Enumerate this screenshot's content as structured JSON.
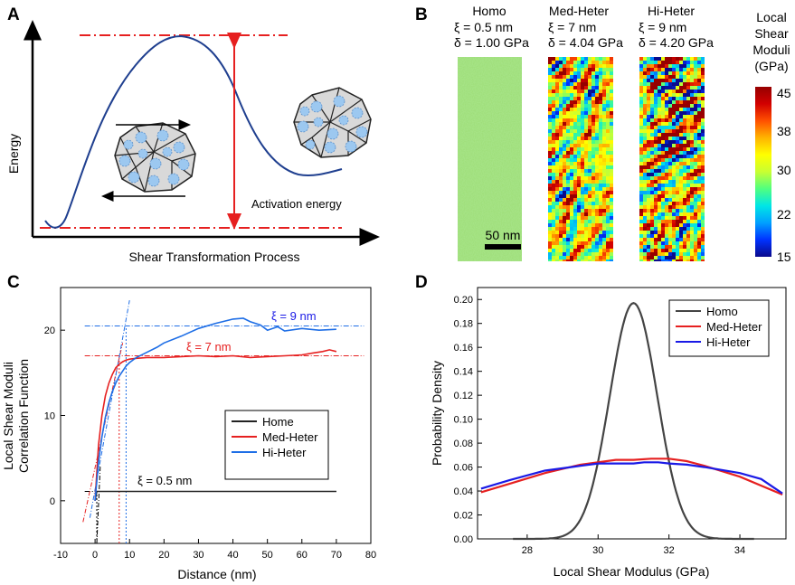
{
  "panels": {
    "A": "A",
    "B": "B",
    "C": "C",
    "D": "D"
  },
  "panelA": {
    "xlabel": "Shear Transformation Process",
    "ylabel": "Energy",
    "annotation": "Activation energy"
  },
  "panelB": {
    "columns": [
      {
        "name": "Homo",
        "xi": "ξ = 0.5 nm",
        "delta": "δ = 1.00 GPa",
        "pattern": "homo"
      },
      {
        "name": "Med-Heter",
        "xi": "ξ = 7 nm",
        "delta": "δ = 4.04 GPa",
        "pattern": "med"
      },
      {
        "name": "Hi-Heter",
        "xi": "ξ = 9 nm",
        "delta": "δ = 4.20 GPa",
        "pattern": "hi"
      }
    ],
    "scalebar": "50 nm",
    "colorbar": {
      "title": [
        "Local",
        "Shear",
        "Moduli",
        "(GPa)"
      ],
      "ticks": [
        "45",
        "38",
        "30",
        "22",
        "15"
      ],
      "colors": [
        "#0a0a8c",
        "#0032ff",
        "#00a0ff",
        "#00e6e6",
        "#50ff80",
        "#c8ff32",
        "#ffff00",
        "#ffb400",
        "#ff5000",
        "#d20000",
        "#960000"
      ]
    }
  },
  "chart_data": [
    {
      "id": "C",
      "type": "line",
      "xlabel": "Distance (nm)",
      "ylabel": [
        "Local Shear Moduli",
        "Correlation Function"
      ],
      "xlim": [
        -10,
        80
      ],
      "ylim": [
        -5,
        25
      ],
      "xticks": [
        -10,
        0,
        10,
        20,
        30,
        40,
        50,
        60,
        70,
        80
      ],
      "yticks": [
        0,
        10,
        20
      ],
      "legend": [
        "Home",
        "Med-Heter",
        "Hi-Heter"
      ],
      "annotations": [
        {
          "text": "ξ = 9 nm",
          "color": "#1a1ae6"
        },
        {
          "text": "ξ = 7 nm",
          "color": "#e62020"
        },
        {
          "text": "ξ = 0.5 nm",
          "color": "#000000"
        }
      ],
      "series": [
        {
          "name": "Home",
          "color": "#222222",
          "x": [
            0,
            0.5,
            1,
            2,
            5,
            10,
            20,
            30,
            40,
            50,
            60,
            70
          ],
          "y": [
            0,
            1.1,
            1.1,
            1.1,
            1.1,
            1.1,
            1.1,
            1.1,
            1.1,
            1.1,
            1.1,
            1.1
          ]
        },
        {
          "name": "Med-Heter",
          "color": "#e62020",
          "x": [
            0,
            1,
            2,
            3,
            4,
            5,
            6,
            7,
            8,
            9,
            10,
            12,
            15,
            20,
            25,
            30,
            35,
            40,
            45,
            50,
            55,
            60,
            63,
            66,
            68,
            70
          ],
          "y": [
            0,
            6.5,
            10,
            12.3,
            13.8,
            14.8,
            15.6,
            16.0,
            16.3,
            16.5,
            16.6,
            16.7,
            16.8,
            16.8,
            16.9,
            17.0,
            16.9,
            17.0,
            16.8,
            16.9,
            17.0,
            17.1,
            17.3,
            17.5,
            17.7,
            17.5
          ]
        },
        {
          "name": "Hi-Heter",
          "color": "#1e6ee6",
          "x": [
            0,
            1,
            2,
            3,
            4,
            5,
            6,
            7,
            8,
            9,
            10,
            12,
            15,
            18,
            20,
            25,
            30,
            35,
            40,
            43,
            45,
            48,
            50,
            53,
            55,
            60,
            65,
            70
          ],
          "y": [
            0,
            4.5,
            7.5,
            9.8,
            11.5,
            12.8,
            13.8,
            14.6,
            15.2,
            15.8,
            16.2,
            16.8,
            17.4,
            18.0,
            18.5,
            19.3,
            20.2,
            20.8,
            21.3,
            21.4,
            21.0,
            20.6,
            20.0,
            20.4,
            19.9,
            20.2,
            20.0,
            20.1
          ]
        }
      ],
      "reference_lines": {
        "horizontal": [
          {
            "y": 20.5,
            "color": "#1e6ee6"
          },
          {
            "y": 17.0,
            "color": "#e62020"
          },
          {
            "y": 1.1,
            "color": "#000000"
          }
        ],
        "vertical": [
          {
            "x": 0.5,
            "color": "#000000"
          },
          {
            "x": 7,
            "color": "#e62020"
          },
          {
            "x": 9,
            "color": "#1e6ee6"
          }
        ],
        "tangents": [
          {
            "color": "#e62020",
            "x": [
              -3.5,
              8
            ],
            "y": [
              -2.5,
              18.5
            ]
          },
          {
            "color": "#1e6ee6",
            "x": [
              -1.5,
              10
            ],
            "y": [
              -2.0,
              23.5
            ]
          },
          {
            "color": "#000000",
            "x": [
              0.5,
              1.5
            ],
            "y": [
              -5.0,
              4.0
            ]
          }
        ]
      }
    },
    {
      "id": "D",
      "type": "line",
      "xlabel": "Local Shear Modulus (GPa)",
      "ylabel": "Probability Density",
      "xlim": [
        26.6,
        35.3
      ],
      "ylim": [
        0,
        0.21
      ],
      "xticks": [
        28,
        30,
        32,
        34
      ],
      "yticks": [
        0.0,
        0.02,
        0.04,
        0.06,
        0.08,
        0.1,
        0.12,
        0.14,
        0.16,
        0.18,
        0.2
      ],
      "legend": [
        "Homo",
        "Med-Heter",
        "Hi-Heter"
      ],
      "series": [
        {
          "name": "Homo",
          "color": "#444444",
          "gaussian": {
            "mean": 31.0,
            "sd": 0.67,
            "peak": 0.197
          }
        },
        {
          "name": "Med-Heter",
          "color": "#e62020",
          "x": [
            26.7,
            27.5,
            28.5,
            29.5,
            30.5,
            31.0,
            31.5,
            32.0,
            32.5,
            33.0,
            34.0,
            35.2
          ],
          "y": [
            0.039,
            0.046,
            0.055,
            0.062,
            0.066,
            0.066,
            0.067,
            0.067,
            0.065,
            0.061,
            0.052,
            0.037
          ]
        },
        {
          "name": "Hi-Heter",
          "color": "#1a1ae6",
          "x": [
            26.7,
            27.5,
            28.5,
            29.5,
            30.0,
            30.5,
            31.0,
            31.3,
            31.7,
            32.0,
            32.5,
            33.0,
            34.0,
            34.6,
            35.2
          ],
          "y": [
            0.042,
            0.049,
            0.057,
            0.061,
            0.063,
            0.063,
            0.063,
            0.064,
            0.064,
            0.063,
            0.062,
            0.06,
            0.055,
            0.05,
            0.038
          ]
        }
      ]
    }
  ]
}
